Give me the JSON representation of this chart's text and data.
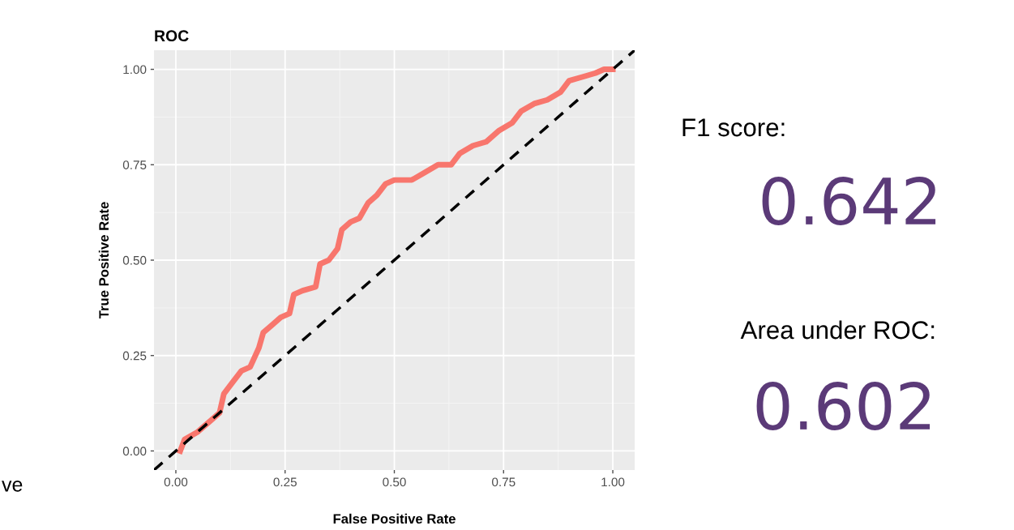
{
  "chart_data": {
    "type": "line",
    "title": "ROC",
    "xlabel": "False Positive Rate",
    "ylabel": "True Positive Rate",
    "xlim": [
      -0.05,
      1.05
    ],
    "ylim": [
      -0.05,
      1.05
    ],
    "xticks": [
      {
        "value": 0,
        "label": "0.00"
      },
      {
        "value": 0.25,
        "label": "0.25"
      },
      {
        "value": 0.5,
        "label": "0.50"
      },
      {
        "value": 0.75,
        "label": "0.75"
      },
      {
        "value": 1,
        "label": "1.00"
      }
    ],
    "yticks": [
      {
        "value": 0,
        "label": "0.00"
      },
      {
        "value": 0.25,
        "label": "0.25"
      },
      {
        "value": 0.5,
        "label": "0.50"
      },
      {
        "value": 0.75,
        "label": "0.75"
      },
      {
        "value": 1,
        "label": "1.00"
      }
    ],
    "grid": true,
    "legend": false,
    "series": [
      {
        "color": "#f8766d",
        "line_style": "solid",
        "x": [
          0.01,
          0.02,
          0.05,
          0.08,
          0.1,
          0.11,
          0.13,
          0.15,
          0.17,
          0.19,
          0.2,
          0.22,
          0.24,
          0.26,
          0.27,
          0.29,
          0.32,
          0.33,
          0.35,
          0.37,
          0.38,
          0.4,
          0.42,
          0.44,
          0.46,
          0.48,
          0.5,
          0.54,
          0.57,
          0.6,
          0.63,
          0.65,
          0.68,
          0.71,
          0.74,
          0.77,
          0.79,
          0.82,
          0.85,
          0.88,
          0.9,
          0.93,
          0.96,
          0.98,
          1.0
        ],
        "values": [
          0.0,
          0.03,
          0.05,
          0.08,
          0.1,
          0.15,
          0.18,
          0.21,
          0.22,
          0.27,
          0.31,
          0.33,
          0.35,
          0.36,
          0.41,
          0.42,
          0.43,
          0.49,
          0.5,
          0.53,
          0.58,
          0.6,
          0.61,
          0.65,
          0.67,
          0.7,
          0.71,
          0.71,
          0.73,
          0.75,
          0.75,
          0.78,
          0.8,
          0.81,
          0.84,
          0.86,
          0.89,
          0.91,
          0.92,
          0.94,
          0.97,
          0.98,
          0.99,
          1.0,
          1.0
        ]
      },
      {
        "color": "#000000",
        "line_style": "dashed",
        "x": [
          -0.05,
          1.05
        ],
        "values": [
          -0.05,
          1.05
        ]
      }
    ],
    "annotations": [
      "F1 score:",
      "0.642",
      "Area under ROC:",
      "0.602",
      "ve"
    ]
  }
}
